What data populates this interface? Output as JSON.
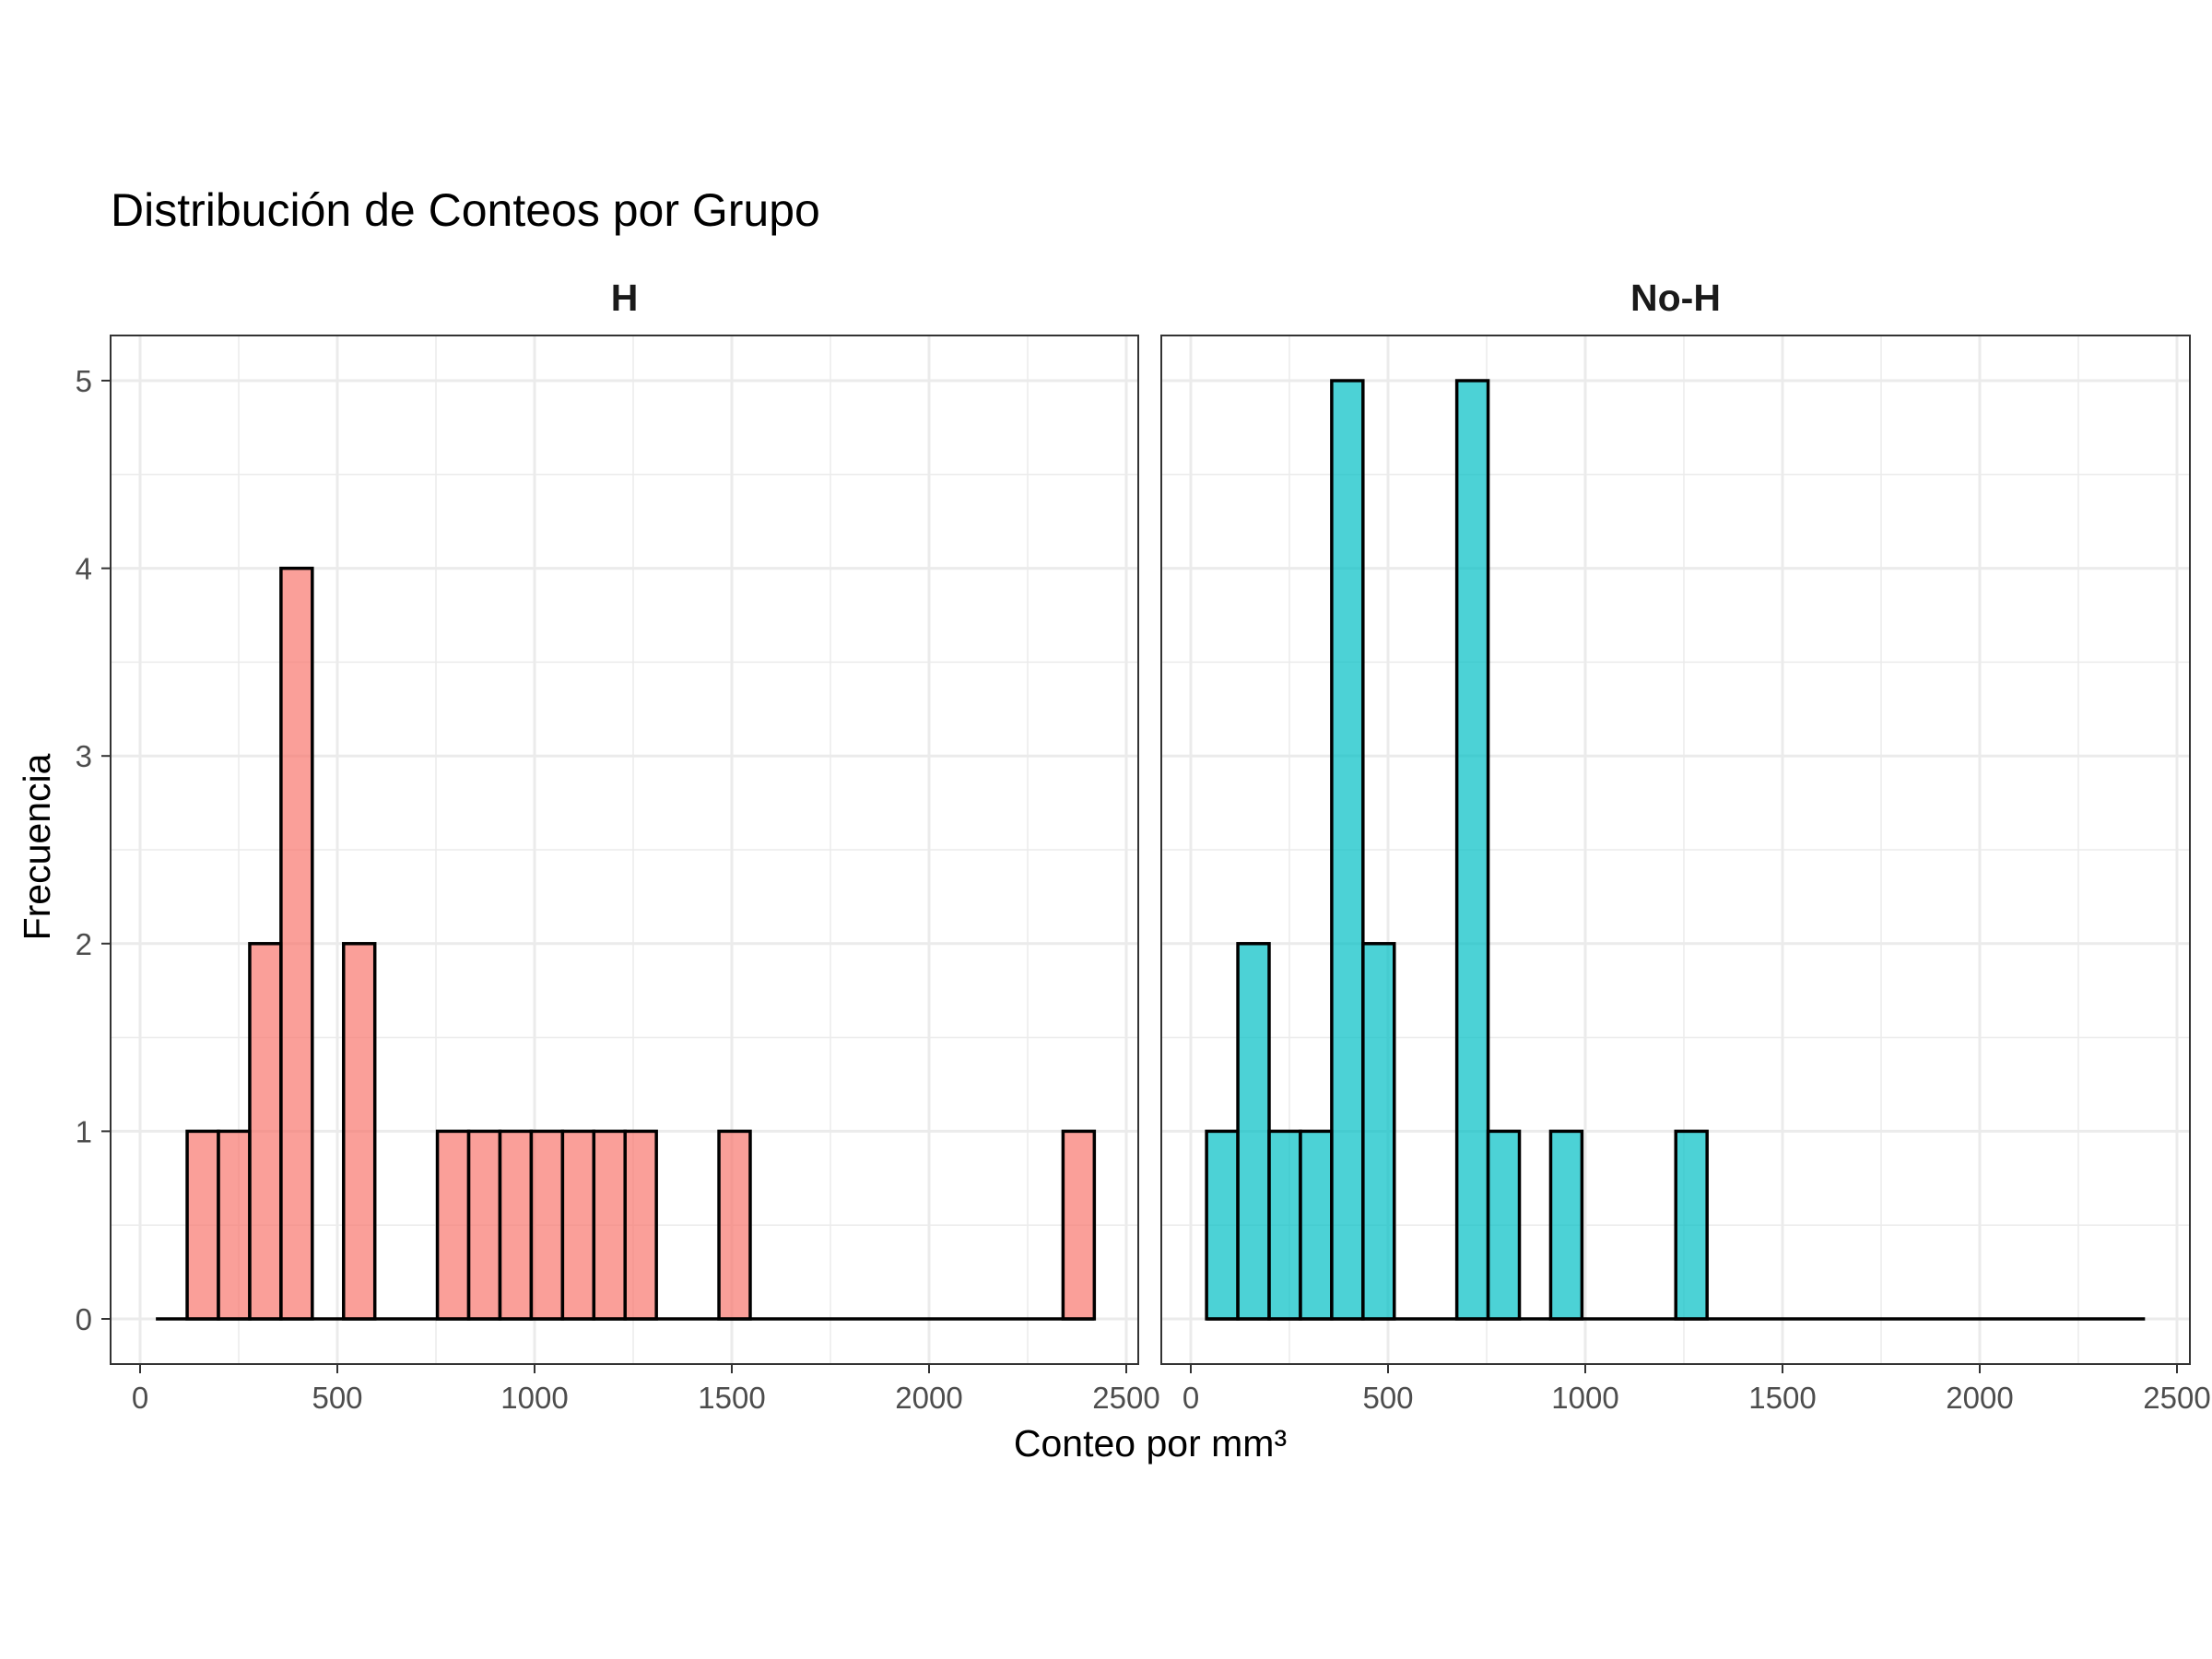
{
  "chart_data": {
    "type": "bar",
    "subtype": "histogram-faceted",
    "title": "Distribución de Conteos por Grupo",
    "xlabel": "Conteo por mm³",
    "ylabel": "Frecuencia",
    "xlim": [
      0,
      2500
    ],
    "ylim": [
      0,
      5
    ],
    "x_ticks": [
      "0",
      "500",
      "1000",
      "1500",
      "2000",
      "2500"
    ],
    "y_ticks": [
      "0",
      "1",
      "2",
      "3",
      "4",
      "5"
    ],
    "x_tick_values": [
      0,
      500,
      1000,
      1500,
      2000,
      2500
    ],
    "y_tick_values": [
      0,
      1,
      2,
      3,
      4,
      5
    ],
    "bin_start": 40,
    "bin_width": 79.3,
    "grid": true,
    "legend": "none",
    "panels": [
      {
        "name": "H",
        "color": "#F8766D",
        "counts": [
          0,
          1,
          1,
          2,
          4,
          0,
          2,
          0,
          0,
          1,
          1,
          1,
          1,
          1,
          1,
          1,
          0,
          0,
          1,
          0,
          0,
          0,
          0,
          0,
          0,
          0,
          0,
          0,
          0,
          1
        ]
      },
      {
        "name": "No-H",
        "color": "#00BFC4",
        "counts": [
          1,
          2,
          1,
          1,
          5,
          2,
          0,
          0,
          5,
          1,
          0,
          1,
          0,
          0,
          0,
          1,
          0,
          0,
          0,
          0,
          0,
          0,
          0,
          0,
          0,
          0,
          0,
          0,
          0,
          0
        ]
      }
    ]
  }
}
